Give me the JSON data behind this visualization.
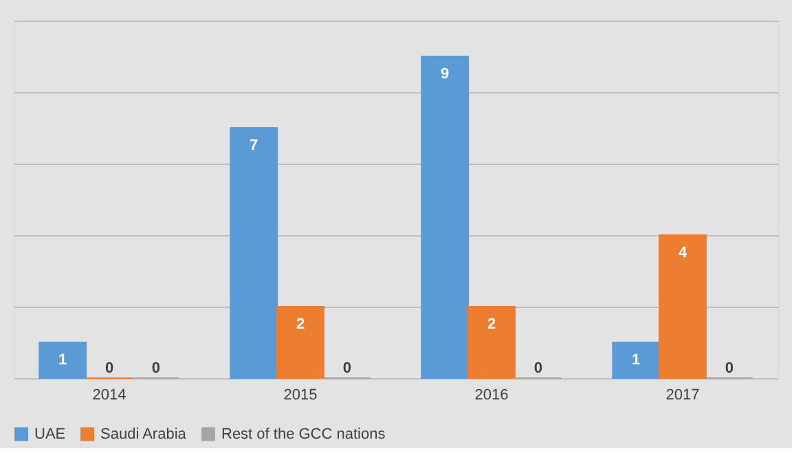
{
  "chart_data": {
    "type": "bar",
    "categories": [
      "2014",
      "2015",
      "2016",
      "2017"
    ],
    "series": [
      {
        "name": "UAE",
        "color": "#5b9bd5",
        "values": [
          1,
          7,
          9,
          1
        ]
      },
      {
        "name": "Saudi Arabia",
        "color": "#ed7d31",
        "values": [
          0,
          2,
          2,
          4
        ]
      },
      {
        "name": "Rest of the GCC nations",
        "color": "#a5a5a5",
        "values": [
          0,
          0,
          0,
          0
        ]
      }
    ],
    "ylim": [
      0,
      10
    ],
    "yticks": [
      {
        "value": 0,
        "label": null
      },
      {
        "value": 2,
        "label": null
      },
      {
        "value": 4,
        "label": null
      },
      {
        "value": 6,
        "label": null
      },
      {
        "value": 8,
        "label": null
      },
      {
        "value": 10,
        "label": null
      }
    ],
    "grid": "y",
    "legend": "bottom",
    "tick_labels": "x",
    "data_labels": true
  }
}
